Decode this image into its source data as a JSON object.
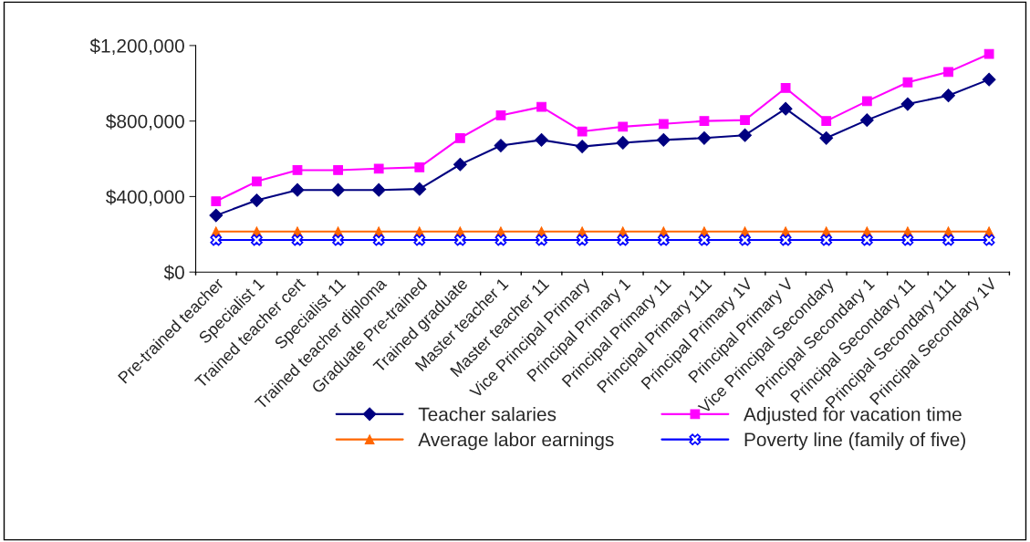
{
  "chart_data": {
    "type": "line",
    "categories": [
      "Pre-trained teacher",
      "Specialist 1",
      "Trained teacher cert",
      "Specialist 11",
      "Trained teacher diploma",
      "Graduate Pre-trained",
      "Trained graduate",
      "Master teacher 1",
      "Master teacher 11",
      "Vice Principal Primary",
      "Principal Primary 1",
      "Principal Primary 11",
      "Principal Primary 111",
      "Principal Primary 1V",
      "Principal Primary V",
      "Vice Principal Secondary",
      "Principal Secondary 1",
      "Principal Secondary 11",
      "Principal Secondary 111",
      "Principal Secondary 1V"
    ],
    "series": [
      {
        "name": "Teacher salaries",
        "color": "#000080",
        "marker": "diamond",
        "values": [
          300000,
          380000,
          435000,
          435000,
          435000,
          440000,
          570000,
          670000,
          700000,
          665000,
          685000,
          700000,
          710000,
          725000,
          865000,
          710000,
          805000,
          890000,
          935000,
          1020000
        ]
      },
      {
        "name": "Adjusted for vacation time",
        "color": "#ff00ff",
        "marker": "square",
        "values": [
          375000,
          480000,
          540000,
          540000,
          548000,
          555000,
          710000,
          830000,
          875000,
          745000,
          770000,
          785000,
          800000,
          805000,
          975000,
          800000,
          905000,
          1005000,
          1060000,
          1155000
        ]
      },
      {
        "name": "Average labor earnings",
        "color": "#ff6600",
        "marker": "triangle",
        "values": [
          215000,
          215000,
          215000,
          215000,
          215000,
          215000,
          215000,
          215000,
          215000,
          215000,
          215000,
          215000,
          215000,
          215000,
          215000,
          215000,
          215000,
          215000,
          215000,
          215000
        ]
      },
      {
        "name": "Poverty line (family of five)",
        "color": "#0000ff",
        "marker": "cross",
        "values": [
          170000,
          170000,
          170000,
          170000,
          170000,
          170000,
          170000,
          170000,
          170000,
          170000,
          170000,
          170000,
          170000,
          170000,
          170000,
          170000,
          170000,
          170000,
          170000,
          170000
        ]
      }
    ],
    "ylim": [
      0,
      1200000
    ],
    "yticks": [
      {
        "value": 0,
        "label": "$0"
      },
      {
        "value": 400000,
        "label": "$400,000"
      },
      {
        "value": 800000,
        "label": "$800,000"
      },
      {
        "value": 1200000,
        "label": "$1,200,000"
      }
    ],
    "grid": false,
    "legend": "bottom",
    "line_style": "solid"
  }
}
